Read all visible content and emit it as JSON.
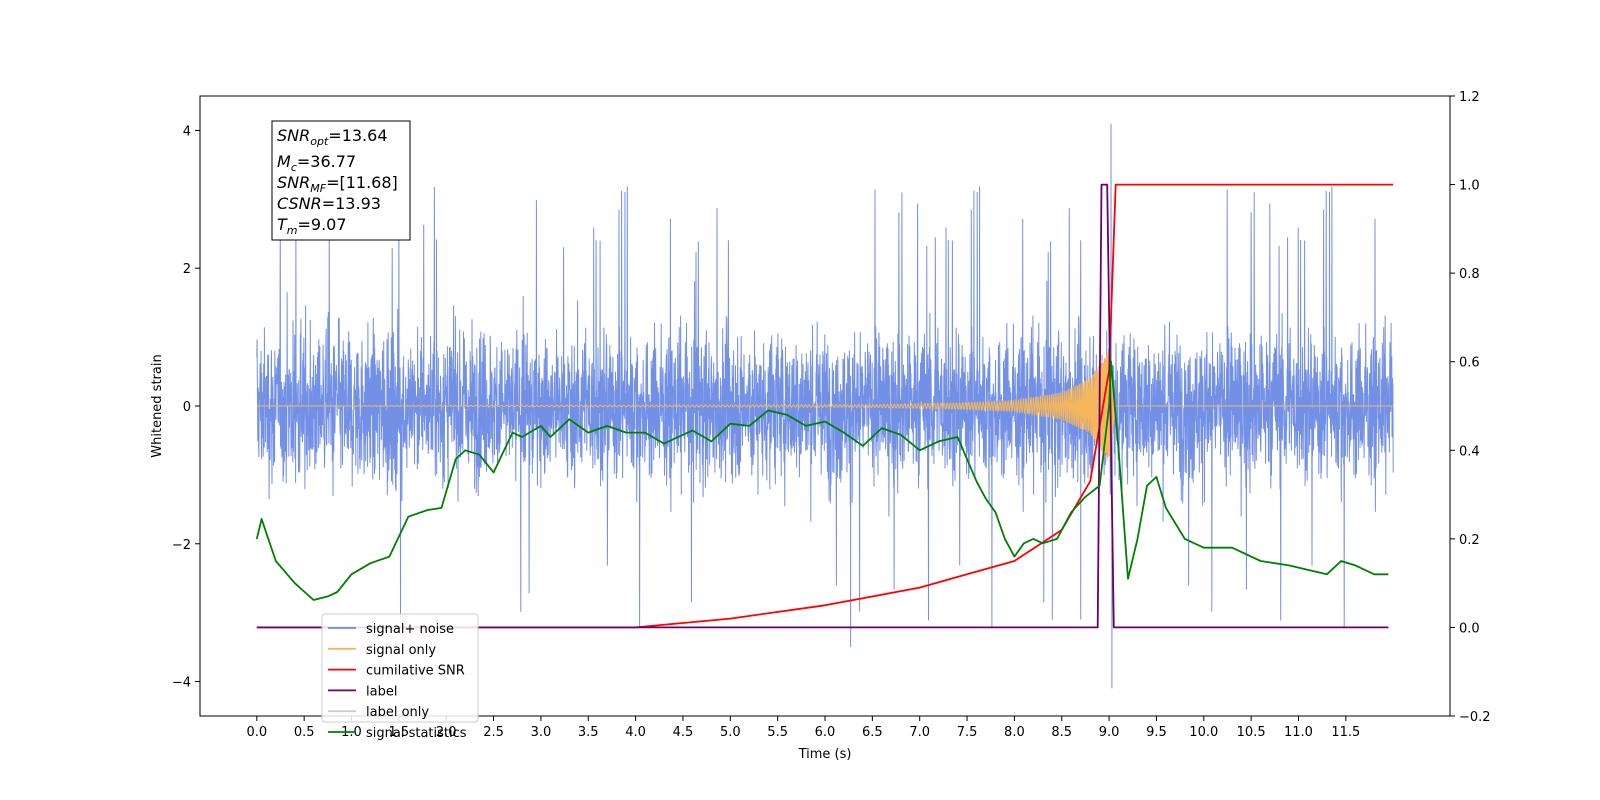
{
  "chart_data": {
    "type": "line",
    "xlabel": "Time (s)",
    "ylabel": "Whitened strain",
    "xlim": [
      -0.6,
      12.6
    ],
    "ylim": [
      -4.5,
      4.5
    ],
    "y2lim": [
      -0.2,
      1.2
    ],
    "x_ticks": [
      0.0,
      0.5,
      1.0,
      1.5,
      2.0,
      2.5,
      3.0,
      3.5,
      4.0,
      4.5,
      5.0,
      5.5,
      6.0,
      6.5,
      7.0,
      7.5,
      8.0,
      8.5,
      9.0,
      9.5,
      10.0,
      10.5,
      11.0,
      11.5
    ],
    "y_ticks": [
      -4,
      -2,
      0,
      2,
      4
    ],
    "y2_ticks": [
      -0.2,
      0.0,
      0.2,
      0.4,
      0.6,
      0.8,
      1.0,
      1.2
    ],
    "grid": false,
    "legend_position": "bottom-left",
    "stats_box": {
      "snr_opt": {
        "sym": "SNR",
        "sub": "opt",
        "value": "=13.64"
      },
      "mc": {
        "sym": "M",
        "sub": "c",
        "value": "=36.77"
      },
      "snr_mf": {
        "sym": "SNR",
        "sub": "MF",
        "value": "=[11.68]"
      },
      "csnr": {
        "sym": "CSNR",
        "sub": "",
        "value": "=13.93"
      },
      "tm": {
        "sym": "T",
        "sub": "m",
        "value": "=9.07"
      }
    },
    "series": [
      {
        "name": "signal+ noise",
        "color": "#6b8ae6",
        "axis": "left",
        "description": "noisy strain, 0.0–12.0 s",
        "envelope": {
          "upper_typical": 1.4,
          "lower_typical": -1.4,
          "upper_peaks": 3.2,
          "lower_peaks": -2.6
        },
        "notable_points": [
          [
            9.02,
            4.1
          ],
          [
            9.03,
            -4.1
          ],
          [
            6.27,
            -3.5
          ],
          [
            8.4,
            -3.1
          ],
          [
            8.7,
            -3.1
          ]
        ]
      },
      {
        "name": "signal only",
        "color": "#f5b75c",
        "axis": "left",
        "description": "chirp ending near 9.07 s",
        "points": [
          [
            0.0,
            0.0
          ],
          [
            6.5,
            0.02
          ],
          [
            7.5,
            0.05
          ],
          [
            8.0,
            0.08
          ],
          [
            8.5,
            0.2
          ],
          [
            8.8,
            0.4
          ],
          [
            9.0,
            0.85
          ],
          [
            9.07,
            0.0
          ],
          [
            12.0,
            0.0
          ]
        ]
      },
      {
        "name": "cumilative SNR",
        "color": "#ff0000",
        "axis": "right",
        "points": [
          [
            0.0,
            0.0
          ],
          [
            4.0,
            0.0
          ],
          [
            5.0,
            0.02
          ],
          [
            6.0,
            0.05
          ],
          [
            7.0,
            0.09
          ],
          [
            7.5,
            0.12
          ],
          [
            8.0,
            0.15
          ],
          [
            8.5,
            0.22
          ],
          [
            8.8,
            0.33
          ],
          [
            9.0,
            0.58
          ],
          [
            9.07,
            1.0
          ],
          [
            12.0,
            1.0
          ]
        ]
      },
      {
        "name": "label",
        "color": "#6a006a",
        "axis": "right",
        "points": [
          [
            0.0,
            0.0
          ],
          [
            8.88,
            0.0
          ],
          [
            8.92,
            1.0
          ],
          [
            8.98,
            1.0
          ],
          [
            9.05,
            0.0
          ],
          [
            11.95,
            0.0
          ]
        ]
      },
      {
        "name": "label only",
        "color": "#cccccc",
        "axis": "right",
        "points": []
      },
      {
        "name": "signal statistics",
        "color": "#008000",
        "axis": "right",
        "points": [
          [
            0.0,
            0.2
          ],
          [
            0.05,
            0.245
          ],
          [
            0.2,
            0.15
          ],
          [
            0.4,
            0.1
          ],
          [
            0.6,
            0.062
          ],
          [
            0.75,
            0.07
          ],
          [
            0.85,
            0.08
          ],
          [
            1.0,
            0.12
          ],
          [
            1.2,
            0.145
          ],
          [
            1.4,
            0.16
          ],
          [
            1.6,
            0.25
          ],
          [
            1.8,
            0.265
          ],
          [
            1.95,
            0.27
          ],
          [
            2.1,
            0.38
          ],
          [
            2.2,
            0.4
          ],
          [
            2.35,
            0.39
          ],
          [
            2.5,
            0.35
          ],
          [
            2.7,
            0.44
          ],
          [
            2.8,
            0.43
          ],
          [
            3.0,
            0.455
          ],
          [
            3.1,
            0.43
          ],
          [
            3.3,
            0.47
          ],
          [
            3.5,
            0.44
          ],
          [
            3.7,
            0.455
          ],
          [
            3.9,
            0.44
          ],
          [
            4.1,
            0.44
          ],
          [
            4.3,
            0.415
          ],
          [
            4.6,
            0.445
          ],
          [
            4.8,
            0.42
          ],
          [
            5.0,
            0.46
          ],
          [
            5.2,
            0.455
          ],
          [
            5.4,
            0.49
          ],
          [
            5.6,
            0.48
          ],
          [
            5.8,
            0.455
          ],
          [
            6.0,
            0.465
          ],
          [
            6.2,
            0.44
          ],
          [
            6.4,
            0.41
          ],
          [
            6.6,
            0.45
          ],
          [
            6.8,
            0.435
          ],
          [
            7.0,
            0.4
          ],
          [
            7.2,
            0.42
          ],
          [
            7.4,
            0.43
          ],
          [
            7.6,
            0.33
          ],
          [
            7.7,
            0.29
          ],
          [
            7.8,
            0.26
          ],
          [
            7.9,
            0.2
          ],
          [
            8.0,
            0.16
          ],
          [
            8.1,
            0.19
          ],
          [
            8.2,
            0.2
          ],
          [
            8.3,
            0.19
          ],
          [
            8.45,
            0.2
          ],
          [
            8.6,
            0.26
          ],
          [
            8.75,
            0.295
          ],
          [
            8.9,
            0.32
          ],
          [
            9.0,
            0.5
          ],
          [
            9.02,
            0.6
          ],
          [
            9.1,
            0.4
          ],
          [
            9.2,
            0.11
          ],
          [
            9.3,
            0.2
          ],
          [
            9.4,
            0.32
          ],
          [
            9.5,
            0.34
          ],
          [
            9.6,
            0.27
          ],
          [
            9.8,
            0.2
          ],
          [
            10.0,
            0.18
          ],
          [
            10.3,
            0.18
          ],
          [
            10.6,
            0.15
          ],
          [
            10.9,
            0.14
          ],
          [
            11.1,
            0.13
          ],
          [
            11.3,
            0.12
          ],
          [
            11.45,
            0.15
          ],
          [
            11.6,
            0.14
          ],
          [
            11.8,
            0.12
          ],
          [
            11.95,
            0.12
          ]
        ]
      }
    ]
  }
}
